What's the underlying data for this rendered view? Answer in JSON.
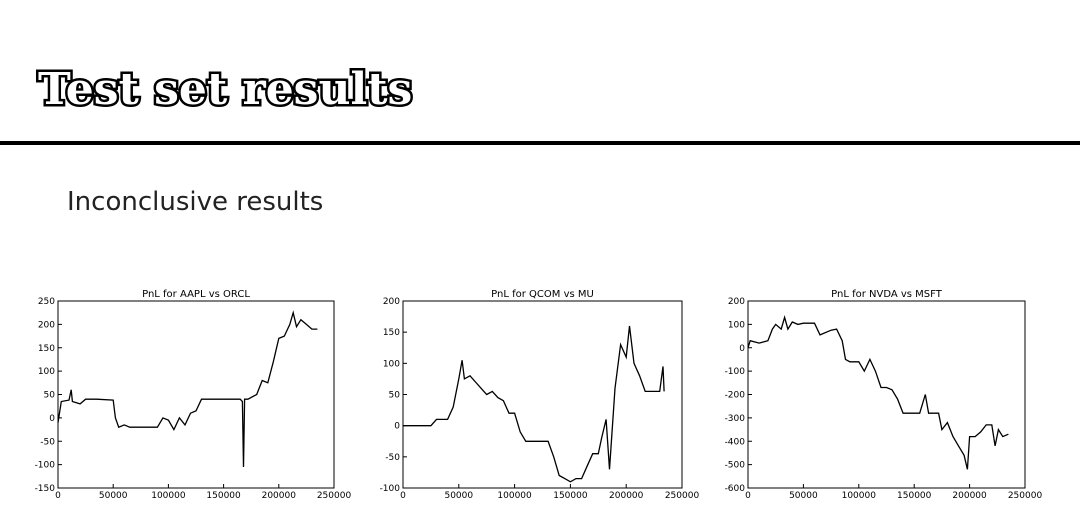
{
  "header": {
    "title": "Test set results"
  },
  "subtitle": "Inconclusive results",
  "chart_data": [
    {
      "type": "line",
      "title": "PnL for AAPL vs ORCL",
      "color": "#000000",
      "x": [
        0,
        3000,
        10000,
        12000,
        13000,
        20000,
        25000,
        35000,
        50000,
        52000,
        55000,
        60000,
        65000,
        70000,
        80000,
        90000,
        95000,
        100000,
        105000,
        110000,
        115000,
        120000,
        125000,
        130000,
        140000,
        150000,
        160000,
        165000,
        167000,
        168000,
        169000,
        172000,
        180000,
        185000,
        190000,
        195000,
        200000,
        205000,
        210000,
        213000,
        216000,
        220000,
        225000,
        230000,
        235000
      ],
      "values": [
        -10,
        35,
        38,
        60,
        35,
        30,
        40,
        40,
        38,
        0,
        -20,
        -15,
        -20,
        -20,
        -20,
        -20,
        0,
        -5,
        -25,
        0,
        -15,
        10,
        15,
        40,
        40,
        40,
        40,
        40,
        35,
        -105,
        40,
        40,
        50,
        80,
        75,
        120,
        170,
        175,
        200,
        225,
        195,
        210,
        200,
        190,
        190
      ],
      "xlim": [
        0,
        250000
      ],
      "xticks": [
        0,
        50000,
        100000,
        150000,
        200000,
        250000
      ],
      "ylim": [
        -150,
        250
      ],
      "yticks": [
        -150,
        -100,
        -50,
        0,
        50,
        100,
        150,
        200,
        250
      ]
    },
    {
      "type": "line",
      "title": "PnL for QCOM vs MU",
      "color": "#000000",
      "x": [
        0,
        25000,
        30000,
        40000,
        45000,
        50000,
        53000,
        55000,
        60000,
        65000,
        70000,
        75000,
        80000,
        85000,
        90000,
        95000,
        100000,
        105000,
        110000,
        120000,
        130000,
        135000,
        140000,
        145000,
        150000,
        155000,
        160000,
        165000,
        170000,
        175000,
        178000,
        182000,
        185000,
        190000,
        195000,
        200000,
        203000,
        207000,
        212000,
        217000,
        225000,
        230000,
        233000,
        234000
      ],
      "values": [
        0,
        0,
        10,
        10,
        30,
        75,
        105,
        75,
        80,
        70,
        60,
        50,
        55,
        45,
        40,
        20,
        20,
        -10,
        -25,
        -25,
        -25,
        -50,
        -80,
        -85,
        -90,
        -85,
        -85,
        -65,
        -45,
        -45,
        -20,
        10,
        -70,
        60,
        130,
        110,
        160,
        100,
        80,
        55,
        55,
        55,
        95,
        55
      ],
      "xlim": [
        0,
        250000
      ],
      "xticks": [
        0,
        50000,
        100000,
        150000,
        200000,
        250000
      ],
      "ylim": [
        -100,
        200
      ],
      "yticks": [
        -100,
        -50,
        0,
        50,
        100,
        150,
        200
      ]
    },
    {
      "type": "line",
      "title": "PnL for NVDA vs MSFT",
      "color": "#000000",
      "x": [
        0,
        2000,
        10000,
        18000,
        22000,
        25000,
        30000,
        33000,
        36000,
        40000,
        45000,
        50000,
        60000,
        65000,
        75000,
        80000,
        85000,
        88000,
        92000,
        100000,
        105000,
        110000,
        115000,
        120000,
        125000,
        130000,
        135000,
        140000,
        145000,
        150000,
        155000,
        160000,
        163000,
        170000,
        172000,
        175000,
        180000,
        185000,
        190000,
        195000,
        198000,
        200000,
        205000,
        210000,
        215000,
        220000,
        223000,
        226000,
        230000,
        235000
      ],
      "values": [
        0,
        30,
        20,
        30,
        80,
        100,
        80,
        130,
        80,
        110,
        100,
        105,
        105,
        55,
        75,
        80,
        30,
        -50,
        -60,
        -60,
        -100,
        -50,
        -100,
        -170,
        -170,
        -180,
        -220,
        -280,
        -280,
        -280,
        -280,
        -200,
        -280,
        -280,
        -280,
        -350,
        -320,
        -380,
        -420,
        -460,
        -520,
        -380,
        -380,
        -360,
        -330,
        -330,
        -420,
        -350,
        -380,
        -370
      ],
      "xlim": [
        0,
        250000
      ],
      "xticks": [
        0,
        50000,
        100000,
        150000,
        200000,
        250000
      ],
      "ylim": [
        -600,
        200
      ],
      "yticks": [
        -600,
        -500,
        -400,
        -300,
        -200,
        -100,
        0,
        100,
        200
      ]
    }
  ]
}
